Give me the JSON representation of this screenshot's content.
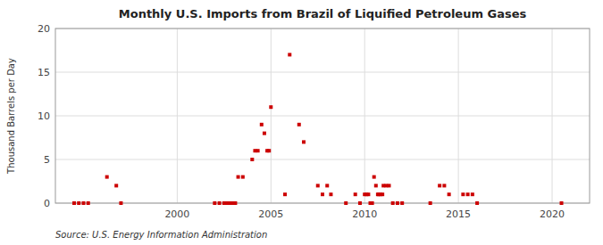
{
  "chart_data": {
    "type": "scatter",
    "title": "Monthly U.S. Imports from Brazil of Liquified Petroleum Gases",
    "ylabel": "Thousand Barrels per Day",
    "source": "Source: U.S. Energy Information Administration",
    "x": [
      1996.25,
      1996.75,
      1994.5,
      1994.75,
      1995.0,
      1995.25,
      1997.0,
      2002.0,
      2002.25,
      2002.5,
      2002.6,
      2002.75,
      2002.85,
      2003.0,
      2003.1,
      2003.25,
      2003.5,
      2004.0,
      2004.15,
      2004.3,
      2004.5,
      2004.65,
      2004.8,
      2004.9,
      2005.0,
      2005.75,
      2006.0,
      2006.5,
      2006.75,
      2007.5,
      2007.75,
      2008.0,
      2008.2,
      2009.0,
      2009.5,
      2009.75,
      2010.0,
      2010.1,
      2010.2,
      2010.3,
      2010.4,
      2010.5,
      2010.6,
      2010.7,
      2010.75,
      2010.85,
      2010.95,
      2011.0,
      2011.15,
      2011.3,
      2011.5,
      2011.75,
      2012.0,
      2013.5,
      2014.0,
      2014.25,
      2014.5,
      2015.25,
      2015.5,
      2015.75,
      2016.0,
      2020.5
    ],
    "values": [
      3.0,
      2.0,
      0,
      0,
      0,
      0,
      0,
      0,
      0,
      0,
      0,
      0,
      0,
      0,
      0,
      3.0,
      3.0,
      5.0,
      6.0,
      6.0,
      9.0,
      8.0,
      6.0,
      6.0,
      11.0,
      1.0,
      17.0,
      9.0,
      7.0,
      2.0,
      1.0,
      2.0,
      1.0,
      0,
      1.0,
      0,
      1.0,
      1.0,
      1.0,
      0,
      0,
      3.0,
      2.0,
      1.0,
      1.0,
      1.0,
      1.0,
      2.0,
      2.0,
      2.0,
      0,
      0,
      0,
      0,
      2.0,
      2.0,
      1.0,
      1.0,
      1.0,
      1.0,
      0,
      0
    ],
    "color": "#cc0000",
    "marker": "square",
    "xlim": [
      1993.5,
      2022
    ],
    "ylim": [
      0,
      20
    ],
    "xticks": [
      2000,
      2005,
      2010,
      2015,
      2020
    ],
    "yticks": [
      0,
      5,
      10,
      15,
      20
    ],
    "grid": true
  }
}
